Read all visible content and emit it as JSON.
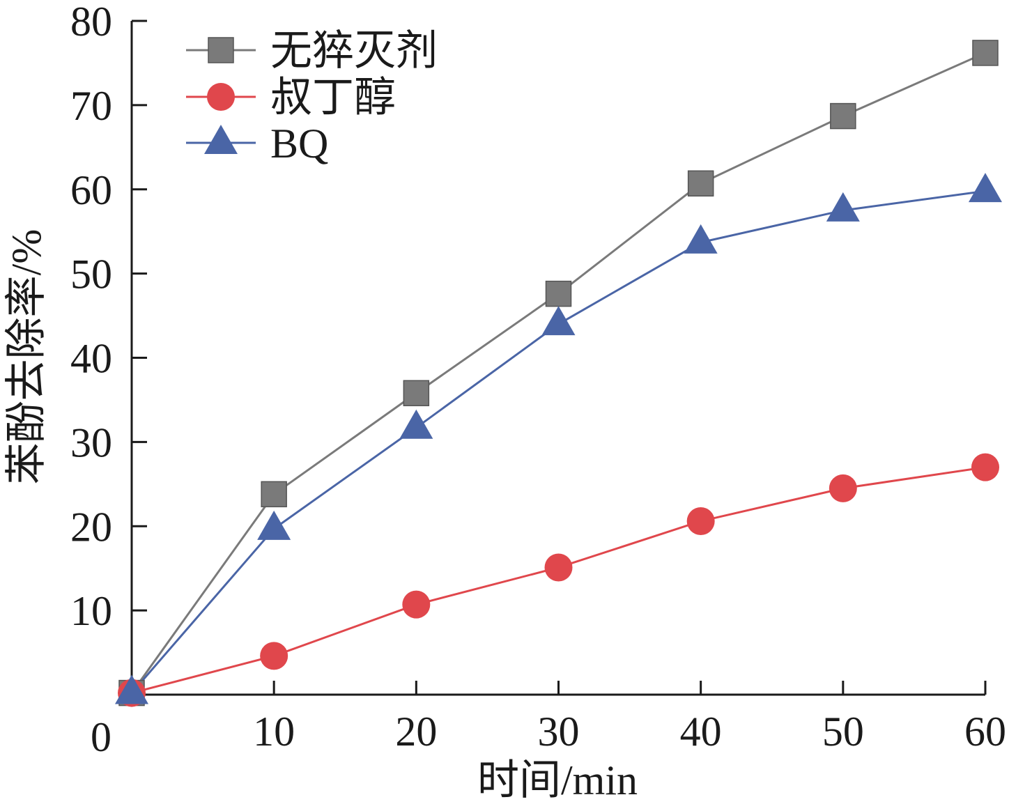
{
  "chart_data": {
    "type": "line",
    "xlabel": "时间/min",
    "ylabel": "苯酚去除率/%",
    "xlim": [
      0,
      60
    ],
    "ylim": [
      0,
      80
    ],
    "x_ticks": [
      0,
      10,
      20,
      30,
      40,
      50,
      60
    ],
    "y_ticks": [
      10,
      20,
      30,
      40,
      50,
      60,
      70,
      80
    ],
    "x_tick_labels": [
      "0",
      "10",
      "20",
      "30",
      "40",
      "50",
      "60"
    ],
    "y_tick_labels": [
      "10",
      "20",
      "30",
      "40",
      "50",
      "60",
      "70",
      "80"
    ],
    "grid": false,
    "legend_position": "top-left",
    "x": [
      0,
      10,
      20,
      30,
      40,
      50,
      60
    ],
    "series": [
      {
        "name": "无猝灭剂",
        "marker": "square",
        "color": "#7a7a7a",
        "values": [
          0.2,
          23.8,
          35.8,
          47.6,
          60.7,
          68.7,
          76.2
        ]
      },
      {
        "name": "叔丁醇",
        "marker": "circle",
        "color": "#e0474c",
        "values": [
          0.2,
          4.6,
          10.7,
          15.1,
          20.6,
          24.5,
          27.0
        ]
      },
      {
        "name": "BQ",
        "marker": "triangle",
        "color": "#4a65a6",
        "values": [
          0.2,
          19.7,
          31.7,
          44.0,
          53.7,
          57.5,
          59.8
        ]
      }
    ]
  }
}
